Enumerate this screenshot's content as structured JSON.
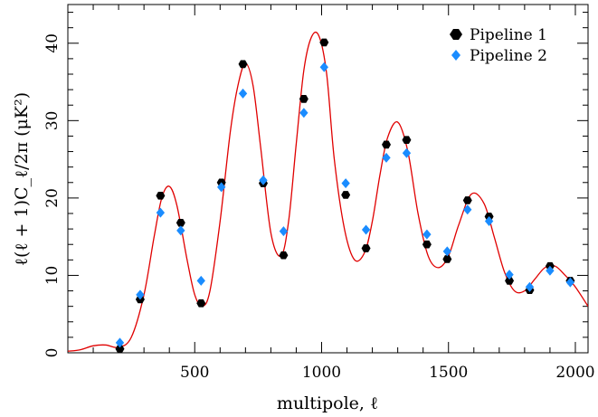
{
  "chart_data": {
    "type": "scatter",
    "title": "",
    "xlabel": "multipole, ℓ",
    "ylabel": "ℓ(ℓ + 1)C_ℓ/2π (μK²)",
    "xlim": [
      0,
      2050
    ],
    "ylim": [
      0,
      45
    ],
    "x_ticks": [
      500,
      1000,
      1500,
      2000
    ],
    "y_ticks": [
      0,
      10,
      20,
      30,
      40
    ],
    "legend_position": "top-right",
    "colors": {
      "pipeline1": "#000000",
      "pipeline2": "#1a8cff",
      "model": "#e00000"
    },
    "series": [
      {
        "name": "Pipeline 1",
        "marker": "hexagon",
        "x": [
          205,
          285,
          365,
          445,
          525,
          605,
          690,
          770,
          850,
          930,
          1010,
          1095,
          1175,
          1255,
          1335,
          1415,
          1495,
          1575,
          1660,
          1740,
          1820,
          1900,
          1980
        ],
        "y": [
          0.5,
          6.9,
          20.3,
          16.8,
          6.4,
          22.0,
          37.3,
          21.9,
          12.6,
          32.8,
          40.1,
          20.4,
          13.5,
          26.9,
          27.5,
          14.0,
          12.1,
          19.7,
          17.6,
          9.3,
          8.1,
          11.2,
          9.3
        ]
      },
      {
        "name": "Pipeline 2",
        "marker": "diamond",
        "x": [
          205,
          285,
          365,
          445,
          525,
          605,
          690,
          770,
          850,
          930,
          1010,
          1095,
          1175,
          1255,
          1335,
          1415,
          1495,
          1575,
          1660,
          1740,
          1820,
          1900,
          1980
        ],
        "y": [
          1.3,
          7.5,
          18.1,
          15.8,
          9.3,
          21.4,
          33.5,
          22.3,
          15.7,
          31.0,
          36.9,
          21.9,
          15.9,
          25.2,
          25.8,
          15.3,
          13.1,
          18.5,
          17.0,
          10.1,
          8.5,
          10.6,
          9.1
        ]
      }
    ],
    "model_curve": {
      "x": [
        0,
        50,
        100,
        150,
        200,
        250,
        300,
        340,
        370,
        400,
        430,
        470,
        500,
        530,
        560,
        600,
        640,
        670,
        700,
        730,
        760,
        800,
        840,
        870,
        900,
        930,
        960,
        990,
        1020,
        1050,
        1090,
        1130,
        1170,
        1200,
        1230,
        1260,
        1300,
        1340,
        1380,
        1420,
        1460,
        1500,
        1540,
        1590,
        1640,
        1680,
        1720,
        1760,
        1800,
        1840,
        1880,
        1920,
        1960,
        2000,
        2050
      ],
      "y": [
        0.2,
        0.4,
        0.9,
        1.0,
        0.7,
        2.0,
        7.5,
        15.0,
        20.0,
        21.5,
        19.0,
        12.0,
        7.5,
        6.0,
        8.0,
        17.0,
        28.5,
        34.5,
        37.4,
        34.5,
        26.5,
        15.5,
        12.5,
        17.0,
        27.0,
        36.5,
        40.8,
        40.9,
        36.0,
        25.0,
        16.0,
        12.0,
        13.0,
        17.0,
        23.0,
        27.8,
        29.8,
        26.0,
        18.0,
        12.5,
        11.0,
        12.5,
        16.5,
        20.5,
        19.3,
        15.0,
        10.5,
        8.0,
        8.0,
        9.5,
        11.0,
        11.2,
        10.0,
        8.5,
        6.0
      ]
    }
  }
}
